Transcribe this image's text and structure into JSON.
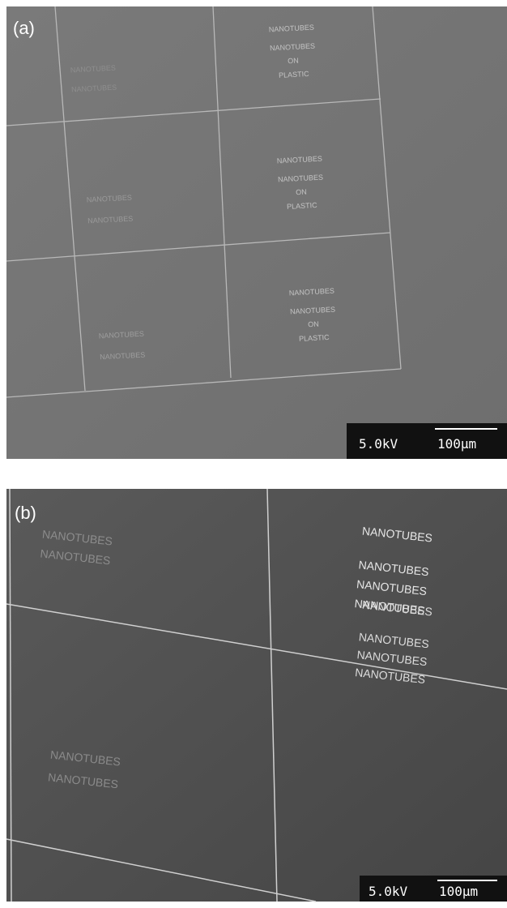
{
  "panels": [
    {
      "label": "(a)",
      "blocks": [
        {
          "lines": [
            "NANOTUBES",
            "NANOTUBES",
            "ON",
            "PLASTIC"
          ]
        },
        {
          "lines": [
            "NANOTUBES",
            "NANOTUBES"
          ]
        },
        {
          "lines": [
            "NANOTUBES",
            "NANOTUBES",
            "ON",
            "PLASTIC"
          ]
        },
        {
          "lines": [
            "NANOTUBES",
            "NANOTUBES"
          ]
        },
        {
          "lines": [
            "NANOTUBES",
            "NANOTUBES",
            "ON",
            "PLASTIC"
          ]
        },
        {
          "lines": [
            "NANOTUBES",
            "NANOTUBES"
          ]
        }
      ],
      "scale_bar": {
        "voltage": "5.0kV",
        "length": "100μm"
      }
    },
    {
      "label": "(b)",
      "blocks": [
        {
          "lines": [
            "NANOTUBES",
            "NANOTUBES"
          ]
        },
        {
          "lines": [
            "NANOTUBES",
            "NANOTUBES",
            "NANOTUBES",
            "NANOTUBES"
          ]
        },
        {
          "lines": [
            "NANOTUBES",
            "NANOTUBES"
          ]
        },
        {
          "lines": [
            "NANOTUBES",
            "NANOTUBES",
            "NANOTUBES",
            "NANOTUBES"
          ]
        }
      ],
      "scale_bar": {
        "voltage": "5.0kV",
        "length": "100μm"
      }
    }
  ]
}
